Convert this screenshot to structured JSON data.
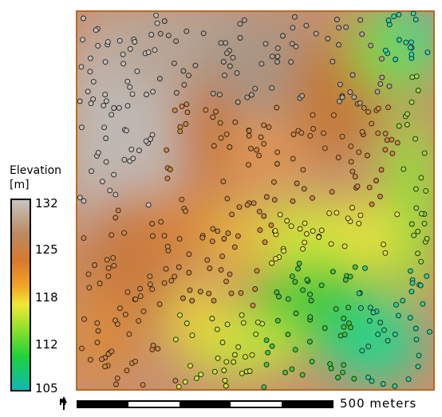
{
  "legend": {
    "title_line1": "Elevation",
    "title_line2": "[m]",
    "ticks": [
      "132",
      "125",
      "118",
      "112",
      "105"
    ],
    "colors": [
      "#0fb8b8",
      "#18d23a",
      "#3fcc22",
      "#c6e81c",
      "#f2e83a",
      "#f29a25",
      "#d9782c",
      "#b98050",
      "#b3a393",
      "#c8c4c0"
    ]
  },
  "scalebar": {
    "label": "500 meters"
  },
  "north_arrow": {
    "label": "N"
  }
}
